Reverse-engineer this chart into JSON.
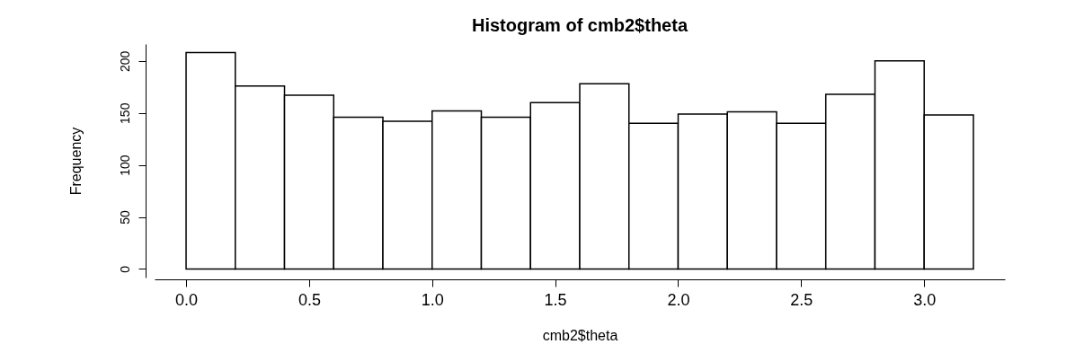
{
  "chart_data": {
    "type": "histogram",
    "title": "Histogram of cmb2$theta",
    "xlabel": "cmb2$theta",
    "ylabel": "Frequency",
    "bins": [
      0.0,
      0.2,
      0.4,
      0.6,
      0.8,
      1.0,
      1.2,
      1.4,
      1.6,
      1.8,
      2.0,
      2.2,
      2.4,
      2.6,
      2.8,
      3.0,
      3.2
    ],
    "values": [
      208,
      176,
      167,
      146,
      142,
      152,
      146,
      160,
      178,
      140,
      149,
      151,
      140,
      168,
      200,
      148
    ],
    "color": "#ffffff",
    "xlim": [
      -0.128,
      3.328
    ],
    "xticks": [
      {
        "value": 0,
        "label": "0.0"
      },
      {
        "value": 0.5,
        "label": "0.5"
      },
      {
        "value": 1,
        "label": "1.0"
      },
      {
        "value": 1.5,
        "label": "1.5"
      },
      {
        "value": 2,
        "label": "2.0"
      },
      {
        "value": 2.5,
        "label": "2.5"
      },
      {
        "value": 3,
        "label": "3.0"
      }
    ],
    "ylim": [
      -8.3,
      216.3
    ],
    "yticks": [
      0,
      50,
      100,
      150,
      200
    ],
    "grid": false
  }
}
